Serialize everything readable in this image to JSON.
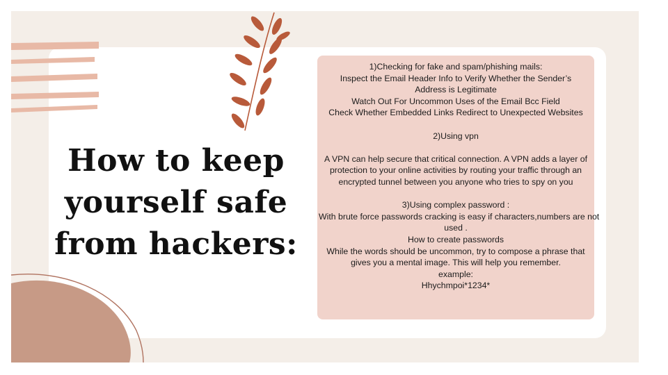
{
  "slide": {
    "title_lines": [
      "How to keep",
      "yourself safe",
      "from hackers:"
    ],
    "box_lines": [
      "1)Checking for fake and spam/phishing mails:",
      "Inspect the Email Header Info to Verify Whether the Sender’s",
      "Address is Legitimate",
      "Watch Out For Uncommon Uses of the Email Bcc Field",
      "Check Whether Embedded Links Redirect to Unexpected Websites",
      "",
      "2)Using vpn",
      "",
      "A VPN can help secure that critical connection. A VPN adds a layer of",
      "protection to your online activities by routing your traffic through an",
      "encrypted tunnel between you anyone who tries to spy on you",
      "",
      "3)Using complex password :",
      "With brute force passwords cracking is easy if characters,numbers are not",
      "used .",
      "How to create passwords",
      "While the words should be uncommon, try to compose a phrase that",
      "gives you a mental image. This will help you remember.",
      "example:",
      "Hhychmpoi*1234*"
    ]
  },
  "colors": {
    "background": "#f4eee8",
    "card": "#ffffff",
    "text_box": "#f1d3cb",
    "stripes": "#e8b9a6",
    "leaves": "#b85a3a",
    "blob": "#c79a86"
  },
  "decorations": [
    "stripes-decoration",
    "leaf-branch-decoration",
    "blob-decoration"
  ]
}
